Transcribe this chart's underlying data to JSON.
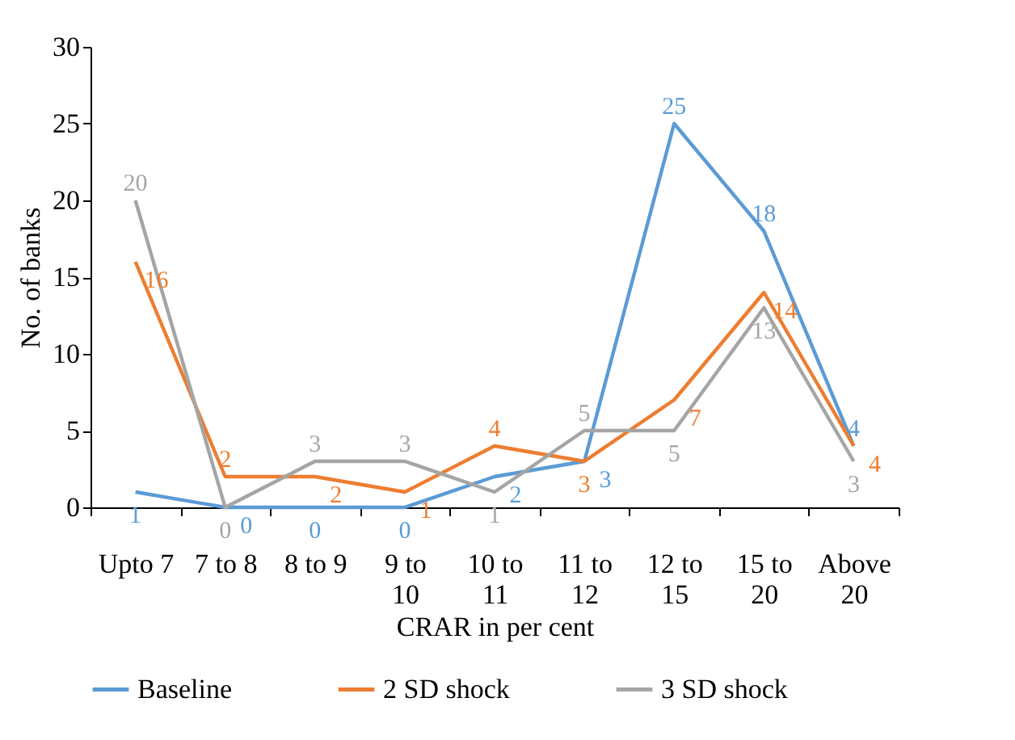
{
  "chart_data": {
    "type": "line",
    "xlabel": "CRAR in per cent",
    "ylabel": "No. of banks",
    "categories": [
      "Upto 7",
      "7 to 8",
      "8 to 9",
      "9 to 10",
      "10 to 11",
      "11 to 12",
      "12 to 15",
      "15 to 20",
      "Above 20"
    ],
    "series": [
      {
        "name": "Baseline",
        "color": "#5b9bd5",
        "values": [
          1,
          0,
          0,
          0,
          2,
          3,
          25,
          18,
          4
        ]
      },
      {
        "name": "2 SD shock",
        "color": "#ed7d31",
        "values": [
          16,
          2,
          2,
          1,
          4,
          3,
          7,
          14,
          4
        ]
      },
      {
        "name": "3 SD shock",
        "color": "#a5a5a5",
        "values": [
          20,
          0,
          3,
          3,
          1,
          5,
          5,
          13,
          3
        ]
      }
    ],
    "ylim": [
      0,
      30
    ],
    "yticks": [
      0,
      5,
      10,
      15,
      20,
      25,
      30
    ],
    "grid": false,
    "legend": "bottom",
    "marker": "none",
    "line_style": "solid",
    "data_labels": true
  }
}
